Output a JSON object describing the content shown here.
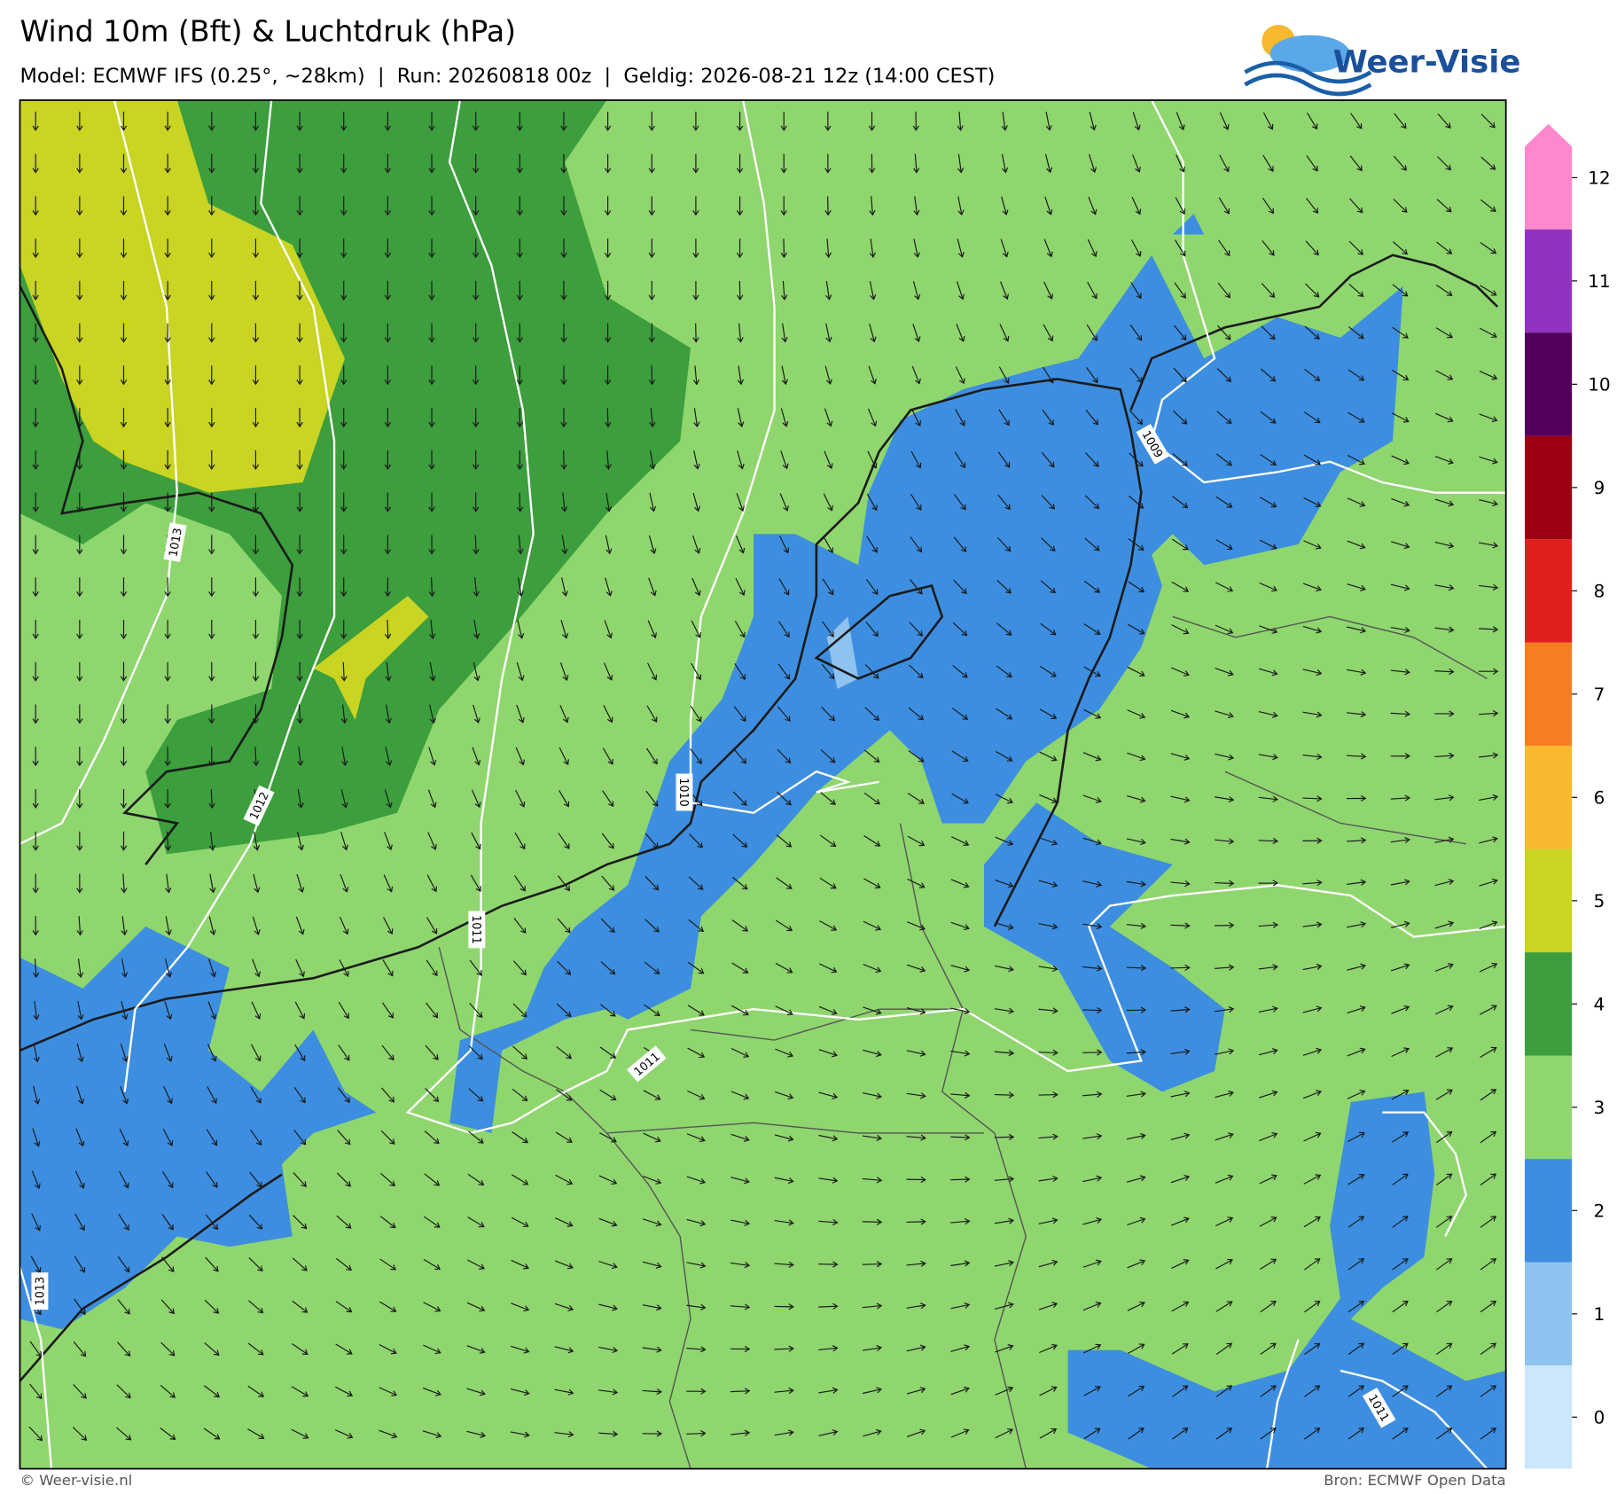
{
  "header": {
    "title": "Wind 10m (Bft) & Luchtdruk (hPa)",
    "subtitle": "Model: ECMWF IFS (0.25°, ~28km)  |  Run: 20260818 00z  |  Geldig: 2026-08-21 12z (14:00 CEST)",
    "logo": "Weer-Visie"
  },
  "colorbar": {
    "levels": [
      {
        "value": 0,
        "color": "#cce6fa"
      },
      {
        "value": 1,
        "color": "#8fc3ef"
      },
      {
        "value": 2,
        "color": "#3d8ee0"
      },
      {
        "value": 3,
        "color": "#8fd66e"
      },
      {
        "value": 4,
        "color": "#3c9e3c"
      },
      {
        "value": 5,
        "color": "#c9d423"
      },
      {
        "value": 6,
        "color": "#f8b830"
      },
      {
        "value": 7,
        "color": "#f57e22"
      },
      {
        "value": 8,
        "color": "#e0201f"
      },
      {
        "value": 9,
        "color": "#9a0010"
      },
      {
        "value": 10,
        "color": "#52005c"
      },
      {
        "value": 11,
        "color": "#9232c0"
      },
      {
        "value": 12,
        "color": "#ff88cc"
      }
    ]
  },
  "isobars": [
    {
      "label": "1013"
    },
    {
      "label": "1012"
    },
    {
      "label": "1011"
    },
    {
      "label": "1010"
    },
    {
      "label": "1009"
    },
    {
      "label": "1011"
    },
    {
      "label": "1013"
    },
    {
      "label": "1011"
    }
  ],
  "footer": {
    "left": "© Weer-visie.nl",
    "right": "Bron: ECMWF Open Data"
  }
}
